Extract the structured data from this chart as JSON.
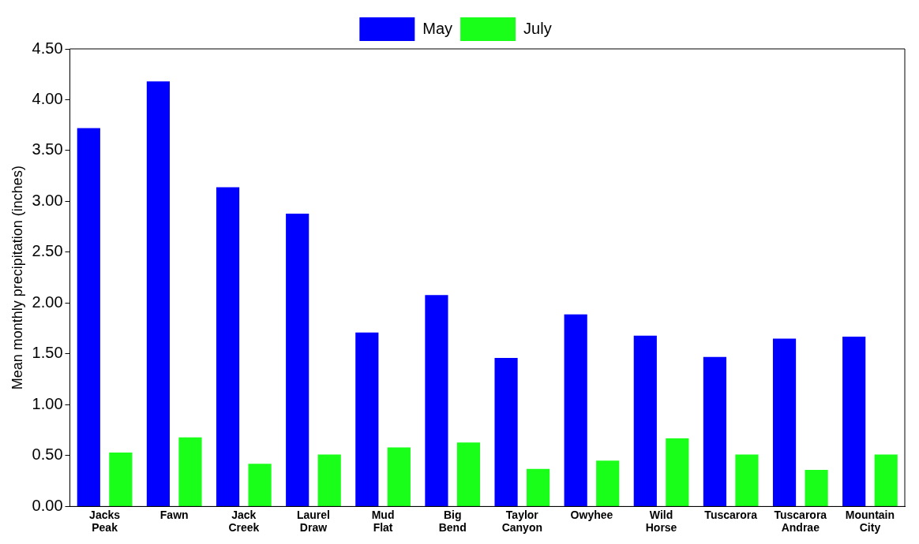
{
  "chart_data": {
    "type": "bar",
    "ylabel": "Mean monthly precipitation (inches)",
    "categories": [
      "Jacks Peak",
      "Fawn",
      "Jack Creek",
      "Laurel Draw",
      "Mud Flat",
      "Big Bend",
      "Taylor Canyon",
      "Owyhee",
      "Wild Horse",
      "Tuscarora",
      "Tuscarora Andrae",
      "Mountain City"
    ],
    "series": [
      {
        "name": "May",
        "color": "#0000ff",
        "values": [
          3.72,
          4.18,
          3.14,
          2.88,
          1.71,
          2.08,
          1.46,
          1.89,
          1.68,
          1.47,
          1.65,
          1.67
        ]
      },
      {
        "name": "July",
        "color": "#19ff19",
        "values": [
          0.53,
          0.68,
          0.42,
          0.51,
          0.58,
          0.63,
          0.37,
          0.45,
          0.67,
          0.51,
          0.36,
          0.51
        ]
      }
    ],
    "ylim": [
      0,
      4.5
    ],
    "yticks": [
      {
        "value": 0,
        "label": "0.00"
      },
      {
        "value": 0.5,
        "label": "0.50"
      },
      {
        "value": 1,
        "label": "1.00"
      },
      {
        "value": 1.5,
        "label": "1.50"
      },
      {
        "value": 2,
        "label": "2.00"
      },
      {
        "value": 2.5,
        "label": "2.50"
      },
      {
        "value": 3,
        "label": "3.00"
      },
      {
        "value": 3.5,
        "label": "3.50"
      },
      {
        "value": 4,
        "label": "4.00"
      },
      {
        "value": 4.5,
        "label": "4.50"
      }
    ],
    "grid": false,
    "legend": "top"
  }
}
